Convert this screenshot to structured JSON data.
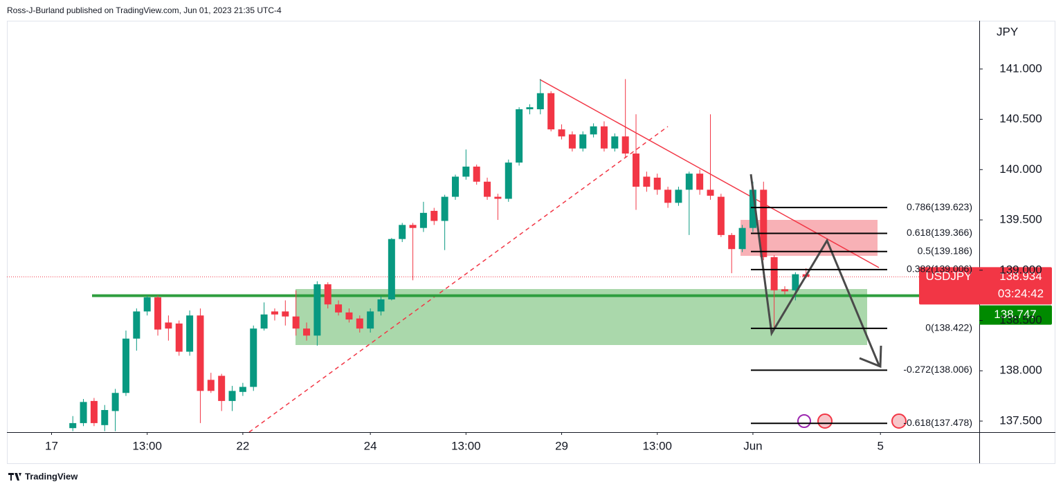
{
  "header": {
    "publisher": "Ross-J-Burland published on TradingView.com, Jun 01, 2023 21:35 UTC-4"
  },
  "footer": {
    "brand": "TradingView"
  },
  "chart_data": {
    "type": "candlestick",
    "currency": "JPY",
    "symbol": "USDJPY",
    "up_color": "#089981",
    "down_color": "#f23645",
    "xlim": [
      -6.2,
      85.3
    ],
    "xticks": [
      {
        "value": -2,
        "label": "17"
      },
      {
        "value": 7,
        "label": "13:00"
      },
      {
        "value": 16,
        "label": "22"
      },
      {
        "value": 28,
        "label": "24"
      },
      {
        "value": 37,
        "label": "13:00"
      },
      {
        "value": 46,
        "label": "29"
      },
      {
        "value": 55,
        "label": "13:00"
      },
      {
        "value": 64,
        "label": "Jun"
      },
      {
        "value": 76,
        "label": "5"
      }
    ],
    "ylim": [
      137.39,
      141.48
    ],
    "yticks": [
      {
        "value": 141,
        "label": "141.000"
      },
      {
        "value": 140.5,
        "label": "140.500"
      },
      {
        "value": 140,
        "label": "140.000"
      },
      {
        "value": 139.5,
        "label": "139.500"
      },
      {
        "value": 139,
        "label": "139.000"
      },
      {
        "value": 138.5,
        "label": "138.500"
      },
      {
        "value": 138,
        "label": "138.000"
      },
      {
        "value": 137.5,
        "label": "137.500"
      }
    ],
    "open": [
      137.43,
      137.48,
      137.7,
      137.46,
      137.6,
      137.78,
      138.32,
      138.59,
      138.73,
      138.48,
      138.47,
      138.19,
      138.55,
      137.91,
      137.95,
      137.7,
      137.79,
      137.84,
      138.42,
      138.59,
      138.59,
      138.54,
      138.42,
      138.35,
      138.86,
      138.66,
      138.58,
      138.52,
      138.42,
      138.59,
      138.71,
      139.31,
      139.45,
      139.42,
      139.59,
      139.49,
      139.73,
      139.93,
      140.03,
      139.88,
      139.73,
      139.71,
      140.07,
      140.6,
      140.6,
      140.76,
      140.4,
      140.35,
      140.21,
      140.35,
      140.43,
      140.21,
      140.33,
      140.16,
      139.93,
      139.92,
      139.8,
      139.67,
      139.8,
      139.96,
      139.8,
      139.73,
      139.35,
      139.21,
      139.42,
      139.8,
      139.13,
      138.81,
      138.8,
      138.96
    ],
    "high": [
      137.55,
      137.72,
      137.73,
      137.66,
      137.82,
      138.4,
      138.62,
      138.75,
      138.75,
      138.55,
      138.5,
      138.6,
      138.62,
      137.98,
      137.97,
      137.85,
      137.88,
      138.45,
      138.68,
      138.62,
      138.7,
      138.8,
      138.48,
      138.89,
      138.88,
      138.7,
      138.62,
      138.55,
      138.62,
      138.74,
      139.32,
      139.47,
      139.47,
      139.68,
      139.62,
      139.75,
      139.95,
      140.2,
      140.05,
      139.92,
      139.76,
      140.1,
      140.62,
      140.65,
      140.9,
      140.78,
      140.45,
      140.38,
      140.38,
      140.46,
      140.48,
      140.36,
      140.9,
      140.55,
      139.98,
      139.96,
      139.83,
      139.83,
      139.98,
      140.0,
      140.55,
      139.76,
      139.37,
      139.45,
      139.88,
      139.88,
      139.15,
      138.84,
      138.98,
      139.02
    ],
    "low": [
      137.4,
      137.45,
      137.45,
      137.4,
      137.4,
      137.75,
      138.2,
      138.55,
      138.35,
      138.3,
      138.15,
      138.15,
      137.48,
      137.78,
      137.6,
      137.6,
      137.75,
      137.8,
      138.4,
      138.5,
      138.45,
      138.35,
      138.3,
      138.25,
      138.62,
      138.55,
      138.48,
      138.38,
      138.38,
      138.55,
      138.7,
      139.28,
      138.9,
      139.38,
      139.45,
      139.2,
      139.7,
      139.9,
      139.85,
      139.7,
      139.5,
      139.68,
      140.04,
      140.55,
      140.55,
      140.38,
      140.3,
      140.18,
      140.18,
      140.32,
      140.18,
      140.18,
      140.12,
      139.6,
      139.78,
      139.75,
      139.62,
      139.64,
      139.35,
      139.75,
      139.7,
      139.33,
      138.97,
      139.18,
      139.38,
      139.1,
      138.42,
      138.76,
      138.7,
      138.92
    ],
    "close": [
      137.48,
      137.69,
      137.48,
      137.61,
      137.78,
      138.32,
      138.59,
      138.73,
      138.41,
      138.42,
      138.19,
      138.55,
      137.8,
      137.8,
      137.7,
      137.8,
      137.84,
      138.42,
      138.56,
      138.56,
      138.54,
      138.42,
      138.35,
      138.86,
      138.66,
      138.58,
      138.51,
      138.42,
      138.59,
      138.71,
      139.31,
      139.45,
      139.42,
      139.57,
      139.49,
      139.73,
      139.93,
      140.03,
      139.88,
      139.73,
      139.71,
      140.07,
      140.6,
      140.62,
      140.76,
      140.4,
      140.33,
      140.21,
      140.35,
      140.43,
      140.21,
      140.33,
      140.16,
      139.83,
      139.83,
      139.8,
      139.67,
      139.8,
      139.96,
      139.8,
      139.74,
      139.35,
      139.21,
      139.42,
      139.8,
      139.13,
      138.8,
      138.79,
      138.96,
      138.934
    ],
    "last_price": 138.934,
    "countdown": "03:24:42",
    "support_level": 138.747,
    "fib_levels": [
      {
        "value": 139.623,
        "label": "0.786(139.623)"
      },
      {
        "value": 139.366,
        "label": "0.618(139.366)"
      },
      {
        "value": 139.186,
        "label": "0.5(139.186)"
      },
      {
        "value": 139.006,
        "label": "0.382(139.006)"
      },
      {
        "value": 138.422,
        "label": "0(138.422)"
      },
      {
        "value": 138.006,
        "label": "-0.272(138.006)"
      },
      {
        "value": 137.478,
        "label": "-0.618(137.478)"
      }
    ]
  }
}
